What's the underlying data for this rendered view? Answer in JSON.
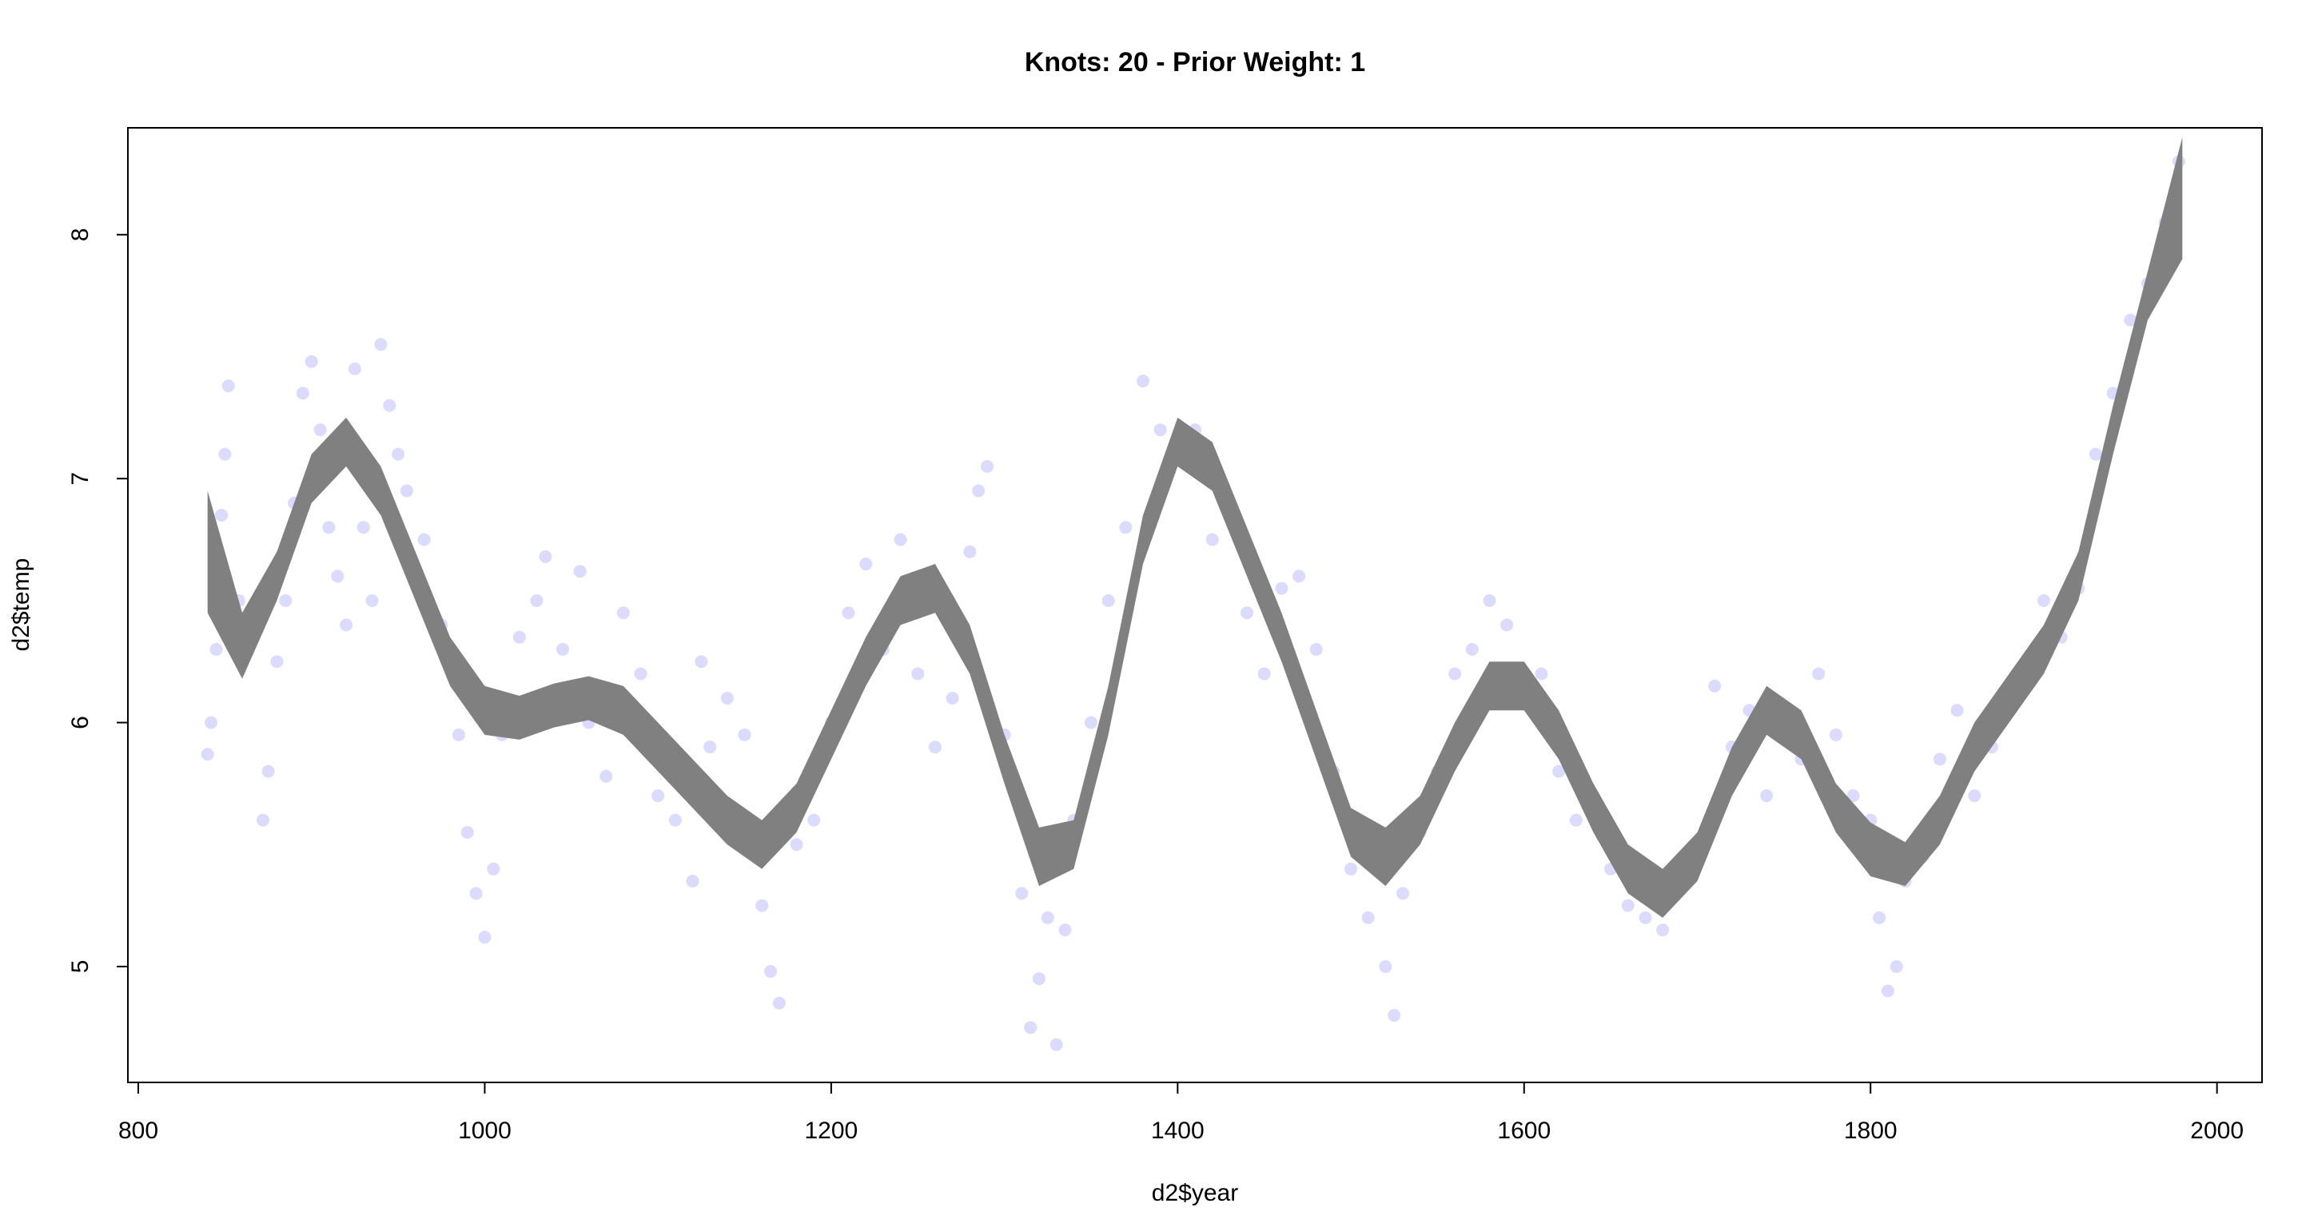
{
  "chart_data": {
    "type": "scatter",
    "title": "Knots: 20 - Prior Weight: 1",
    "x_label": "d2$year",
    "y_label": "d2$temp",
    "xlim": [
      794,
      2026
    ],
    "ylim": [
      4.525,
      8.438
    ],
    "xticks": [
      800,
      1000,
      1200,
      1400,
      1600,
      1800,
      2000
    ],
    "yticks": [
      5,
      6,
      7,
      8
    ],
    "points": {
      "color": "#4d4dff",
      "x": [
        840,
        842,
        845,
        848,
        850,
        852,
        858,
        865,
        872,
        875,
        880,
        885,
        890,
        895,
        900,
        905,
        910,
        915,
        920,
        925,
        930,
        935,
        940,
        945,
        950,
        955,
        965,
        975,
        985,
        990,
        995,
        1000,
        1005,
        1010,
        1020,
        1030,
        1035,
        1045,
        1055,
        1060,
        1070,
        1080,
        1090,
        1100,
        1110,
        1120,
        1125,
        1130,
        1140,
        1150,
        1160,
        1165,
        1170,
        1180,
        1190,
        1200,
        1210,
        1220,
        1230,
        1240,
        1250,
        1260,
        1270,
        1280,
        1285,
        1290,
        1300,
        1310,
        1315,
        1320,
        1325,
        1330,
        1335,
        1340,
        1350,
        1360,
        1370,
        1380,
        1390,
        1400,
        1410,
        1420,
        1430,
        1440,
        1450,
        1460,
        1470,
        1480,
        1490,
        1500,
        1510,
        1520,
        1525,
        1530,
        1540,
        1550,
        1560,
        1570,
        1580,
        1590,
        1600,
        1610,
        1620,
        1630,
        1640,
        1650,
        1660,
        1670,
        1680,
        1690,
        1700,
        1710,
        1720,
        1730,
        1740,
        1750,
        1760,
        1770,
        1780,
        1790,
        1800,
        1805,
        1810,
        1815,
        1820,
        1830,
        1840,
        1850,
        1860,
        1870,
        1880,
        1890,
        1900,
        1910,
        1920,
        1930,
        1940,
        1950,
        1960,
        1970,
        1978
      ],
      "y": [
        5.87,
        6.0,
        6.3,
        6.85,
        7.1,
        7.38,
        6.5,
        6.4,
        5.6,
        5.8,
        6.25,
        6.5,
        6.9,
        7.35,
        7.48,
        7.2,
        6.8,
        6.6,
        6.4,
        7.45,
        6.8,
        6.5,
        7.55,
        7.3,
        7.1,
        6.95,
        6.75,
        6.4,
        5.95,
        5.55,
        5.3,
        5.12,
        5.4,
        5.95,
        6.35,
        6.5,
        6.68,
        6.3,
        6.62,
        6.0,
        5.78,
        6.45,
        6.2,
        5.7,
        5.6,
        5.35,
        6.25,
        5.9,
        6.1,
        5.95,
        5.25,
        4.98,
        4.85,
        5.5,
        5.6,
        6.0,
        6.45,
        6.65,
        6.3,
        6.75,
        6.2,
        5.9,
        6.1,
        6.7,
        6.95,
        7.05,
        5.95,
        5.3,
        4.75,
        4.95,
        5.2,
        4.68,
        5.15,
        5.6,
        6.0,
        6.5,
        6.8,
        7.4,
        7.2,
        7.15,
        7.2,
        6.75,
        6.9,
        6.45,
        6.2,
        6.55,
        6.6,
        6.3,
        5.8,
        5.4,
        5.2,
        5.0,
        4.8,
        5.3,
        5.55,
        5.8,
        6.2,
        6.3,
        6.5,
        6.4,
        6.1,
        6.2,
        5.8,
        5.6,
        5.7,
        5.4,
        5.25,
        5.2,
        5.15,
        5.35,
        5.5,
        6.15,
        5.9,
        6.05,
        5.7,
        6.0,
        5.85,
        6.2,
        5.95,
        5.7,
        5.6,
        5.2,
        4.9,
        5.0,
        5.35,
        5.45,
        5.85,
        6.05,
        5.7,
        5.9,
        6.1,
        6.2,
        6.5,
        6.35,
        6.55,
        7.1,
        7.35,
        7.65,
        7.8,
        8.05,
        8.3
      ]
    },
    "band": {
      "color": "#808080",
      "x": [
        840,
        860,
        880,
        900,
        920,
        940,
        960,
        980,
        1000,
        1020,
        1040,
        1060,
        1080,
        1100,
        1120,
        1140,
        1160,
        1180,
        1200,
        1220,
        1240,
        1260,
        1280,
        1300,
        1320,
        1340,
        1360,
        1380,
        1400,
        1420,
        1440,
        1460,
        1480,
        1500,
        1520,
        1540,
        1560,
        1580,
        1600,
        1620,
        1640,
        1660,
        1680,
        1700,
        1720,
        1740,
        1760,
        1780,
        1800,
        1820,
        1840,
        1860,
        1880,
        1900,
        1920,
        1940,
        1960,
        1980
      ],
      "lower": [
        6.45,
        6.18,
        6.5,
        6.9,
        7.05,
        6.85,
        6.5,
        6.15,
        5.95,
        5.93,
        5.98,
        6.01,
        5.95,
        5.8,
        5.65,
        5.5,
        5.4,
        5.55,
        5.85,
        6.15,
        6.4,
        6.45,
        6.2,
        5.75,
        5.33,
        5.4,
        5.95,
        6.65,
        7.05,
        6.95,
        6.6,
        6.25,
        5.85,
        5.45,
        5.33,
        5.5,
        5.8,
        6.05,
        6.05,
        5.85,
        5.55,
        5.3,
        5.2,
        5.35,
        5.7,
        5.95,
        5.85,
        5.55,
        5.37,
        5.33,
        5.5,
        5.8,
        6.0,
        6.2,
        6.5,
        7.1,
        7.65,
        7.9
      ],
      "upper": [
        6.95,
        6.45,
        6.7,
        7.1,
        7.25,
        7.05,
        6.7,
        6.35,
        6.15,
        6.11,
        6.16,
        6.19,
        6.15,
        6.0,
        5.85,
        5.7,
        5.6,
        5.75,
        6.05,
        6.35,
        6.6,
        6.65,
        6.4,
        5.95,
        5.57,
        5.6,
        6.15,
        6.85,
        7.25,
        7.15,
        6.8,
        6.45,
        6.05,
        5.65,
        5.57,
        5.7,
        6.0,
        6.25,
        6.25,
        6.05,
        5.75,
        5.5,
        5.4,
        5.55,
        5.9,
        6.15,
        6.05,
        5.75,
        5.59,
        5.51,
        5.7,
        6.0,
        6.2,
        6.4,
        6.7,
        7.3,
        7.85,
        8.4
      ]
    }
  }
}
